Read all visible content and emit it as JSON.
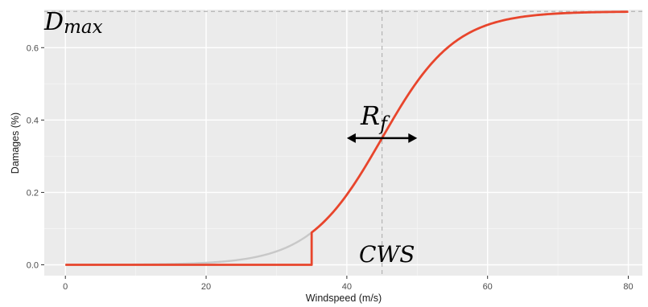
{
  "chart_data": {
    "type": "line",
    "title": "",
    "xlabel": "Windspeed (m/s)",
    "ylabel": "Damages (%)",
    "xlim": [
      -3,
      82
    ],
    "ylim": [
      -0.03,
      0.705
    ],
    "x_ticks": [
      0,
      20,
      40,
      60,
      80
    ],
    "y_ticks": [
      0.0,
      0.2,
      0.4,
      0.6
    ],
    "y_tick_labels": [
      "0.0",
      "0.2",
      "0.4",
      "0.6"
    ],
    "grid": true,
    "model": {
      "dmax": 0.7,
      "cws": 45,
      "rf": 5.2,
      "threshold": 35
    },
    "series": [
      {
        "color": "#c8c8c8",
        "style": "full logistic curve",
        "x": [
          0,
          5,
          10,
          15,
          20,
          25,
          30,
          35
        ],
        "y": [
          0.0001,
          0.0002,
          0.0011,
          0.0035,
          0.0089,
          0.0202,
          0.0465,
          0.1125
        ]
      },
      {
        "color": "#e8452c",
        "style": "truncated damage curve",
        "x": [
          0,
          35,
          35,
          37.5,
          40,
          42.5,
          45,
          47.5,
          50,
          52.5,
          55,
          57.5,
          60,
          65,
          70,
          75,
          80
        ],
        "y": [
          0,
          0,
          0.1125,
          0.1619,
          0.2283,
          0.2848,
          0.35,
          0.4152,
          0.4717,
          0.5381,
          0.5875,
          0.6206,
          0.649,
          0.6795,
          0.6921,
          0.697,
          0.699
        ]
      }
    ],
    "reference_lines": {
      "vertical_x": 45,
      "horizontal_y": 0.7,
      "color": "#b3b3b3",
      "dash": "dashed"
    },
    "annotations": {
      "dmax": {
        "base": "D",
        "sub": "max"
      },
      "rf": {
        "base": "R",
        "sub": "f"
      },
      "cws": {
        "text": "CWS"
      },
      "arrow": {
        "x_from": 40,
        "x_to": 50,
        "y": 0.35,
        "color": "#000000"
      }
    }
  }
}
